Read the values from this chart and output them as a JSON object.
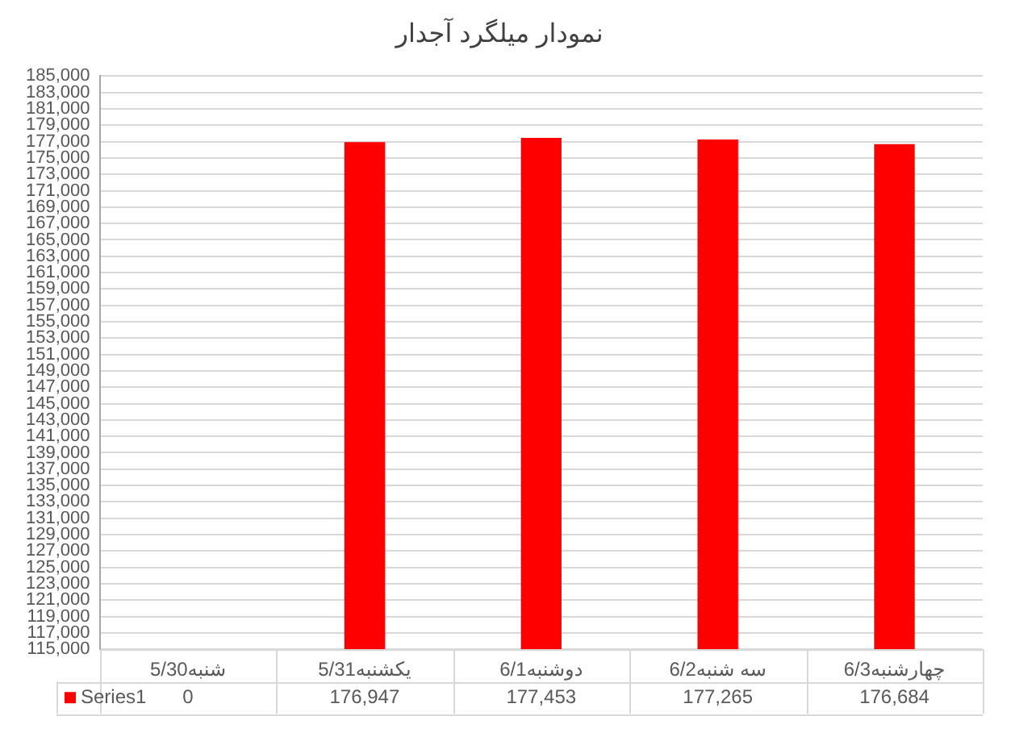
{
  "chart_data": {
    "type": "bar",
    "title": "نمودار میلگرد آجدار",
    "categories": [
      "شنبه5/30",
      "یکشنبه5/31",
      "دوشنبه6/1",
      "سه شنبه6/2",
      "چهارشنبه6/3"
    ],
    "series": [
      {
        "name": "Series1",
        "color": "#ff0000",
        "values": [
          null,
          176947,
          177453,
          177265,
          176684
        ],
        "value_labels": [
          "0",
          "176,947",
          "177,453",
          "177,265",
          "176,684"
        ]
      }
    ],
    "ylim": [
      115000,
      185000
    ],
    "yticks": [
      {
        "value": 115000,
        "label": "115,000"
      },
      {
        "value": 117000,
        "label": "117,000"
      },
      {
        "value": 119000,
        "label": "119,000"
      },
      {
        "value": 121000,
        "label": "121,000"
      },
      {
        "value": 123000,
        "label": "123,000"
      },
      {
        "value": 125000,
        "label": "125,000"
      },
      {
        "value": 127000,
        "label": "127,000"
      },
      {
        "value": 129000,
        "label": "129,000"
      },
      {
        "value": 131000,
        "label": "131,000"
      },
      {
        "value": 133000,
        "label": "133,000"
      },
      {
        "value": 135000,
        "label": "135,000"
      },
      {
        "value": 137000,
        "label": "137,000"
      },
      {
        "value": 139000,
        "label": "139,000"
      },
      {
        "value": 141000,
        "label": "141,000"
      },
      {
        "value": 143000,
        "label": "143,000"
      },
      {
        "value": 145000,
        "label": "145,000"
      },
      {
        "value": 147000,
        "label": "147,000"
      },
      {
        "value": 149000,
        "label": "149,000"
      },
      {
        "value": 151000,
        "label": "151,000"
      },
      {
        "value": 153000,
        "label": "153,000"
      },
      {
        "value": 155000,
        "label": "155,000"
      },
      {
        "value": 157000,
        "label": "157,000"
      },
      {
        "value": 159000,
        "label": "159,000"
      },
      {
        "value": 161000,
        "label": "161,000"
      },
      {
        "value": 163000,
        "label": "163,000"
      },
      {
        "value": 165000,
        "label": "165,000"
      },
      {
        "value": 167000,
        "label": "167,000"
      },
      {
        "value": 169000,
        "label": "169,000"
      },
      {
        "value": 171000,
        "label": "171,000"
      },
      {
        "value": 173000,
        "label": "173,000"
      },
      {
        "value": 175000,
        "label": "175,000"
      },
      {
        "value": 177000,
        "label": "177,000"
      },
      {
        "value": 179000,
        "label": "179,000"
      },
      {
        "value": 181000,
        "label": "181,000"
      },
      {
        "value": 183000,
        "label": "183,000"
      },
      {
        "value": 185000,
        "label": "185,000"
      }
    ],
    "grid": "y",
    "legend": "bottom"
  }
}
